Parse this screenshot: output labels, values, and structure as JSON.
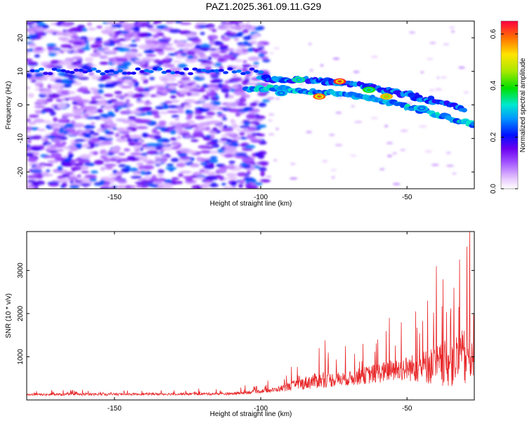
{
  "title": "PAZ1.2025.361.09.11.G29",
  "colors": {
    "snr_line": "#e8282a"
  },
  "chart_data": [
    {
      "type": "heatmap",
      "name": "spectrogram",
      "xlabel": "Height of straight line (km)",
      "ylabel": "Frequency (Hz)",
      "xlim": [
        -180,
        -27
      ],
      "ylim": [
        -25,
        25
      ],
      "xticks": [
        -150,
        -100,
        -50
      ],
      "yticks": [
        -20,
        -10,
        0,
        10,
        20
      ],
      "colorbar": {
        "label": "Normalized spectral amplitude",
        "range": [
          0,
          0.65
        ],
        "ticks": [
          0.0,
          0.2,
          0.4,
          0.6
        ]
      },
      "main_tone": [
        {
          "x": -105,
          "f": 4.5
        },
        {
          "x": -95,
          "f": 5.0
        },
        {
          "x": -85,
          "f": 4.0
        },
        {
          "x": -75,
          "f": 3.5
        },
        {
          "x": -65,
          "f": 2.5
        },
        {
          "x": -55,
          "f": 0.5
        },
        {
          "x": -45,
          "f": -1.5
        },
        {
          "x": -35,
          "f": -4.0
        },
        {
          "x": -27,
          "f": -6.0
        }
      ],
      "secondary_tone": [
        {
          "x": -100,
          "f": 8.0
        },
        {
          "x": -85,
          "f": 7.5
        },
        {
          "x": -70,
          "f": 6.5
        },
        {
          "x": -60,
          "f": 5.0
        },
        {
          "x": -50,
          "f": 3.0
        },
        {
          "x": -40,
          "f": 1.0
        },
        {
          "x": -30,
          "f": -1.5
        }
      ],
      "peaks": [
        {
          "x": -73,
          "f": 7,
          "amp": 0.63
        },
        {
          "x": -80,
          "f": 2.5,
          "amp": 0.6
        },
        {
          "x": -57,
          "f": 2.5,
          "amp": 0.55
        },
        {
          "x": -63,
          "f": 4.5,
          "amp": 0.4
        },
        {
          "x": -87,
          "f": 7.5,
          "amp": 0.35
        },
        {
          "x": -93,
          "f": 3.5,
          "amp": 0.3
        },
        {
          "x": -45,
          "f": -1,
          "amp": 0.3
        }
      ]
    },
    {
      "type": "line",
      "name": "snr",
      "xlabel": "Height of straight line (km)",
      "ylabel": "SNR (10 * v/v)",
      "xlim": [
        -180,
        -27
      ],
      "ylim": [
        0,
        3900
      ],
      "xticks": [
        -150,
        -100,
        -50
      ],
      "yticks": [
        1000,
        2000,
        3000
      ],
      "envelope": [
        {
          "x": -180,
          "mean": 120,
          "amp": 90
        },
        {
          "x": -110,
          "mean": 140,
          "amp": 110
        },
        {
          "x": -95,
          "mean": 230,
          "amp": 200
        },
        {
          "x": -82,
          "mean": 420,
          "amp": 650
        },
        {
          "x": -70,
          "mean": 480,
          "amp": 600
        },
        {
          "x": -60,
          "mean": 600,
          "amp": 850
        },
        {
          "x": -50,
          "mean": 700,
          "amp": 1050
        },
        {
          "x": -40,
          "mean": 750,
          "amp": 1700
        },
        {
          "x": -30,
          "mean": 900,
          "amp": 2500
        },
        {
          "x": -27,
          "mean": 1200,
          "amp": 2800
        }
      ],
      "spikes": [
        {
          "x": -28.5,
          "y": 3900
        },
        {
          "x": -29.5,
          "y": 3550
        },
        {
          "x": -32,
          "y": 3250
        },
        {
          "x": -34,
          "y": 2600
        },
        {
          "x": -40,
          "y": 3100
        },
        {
          "x": -43,
          "y": 2300
        },
        {
          "x": -47,
          "y": 2050
        },
        {
          "x": -52,
          "y": 1800
        },
        {
          "x": -56,
          "y": 1900
        },
        {
          "x": -60,
          "y": 1400
        },
        {
          "x": -65,
          "y": 1300
        },
        {
          "x": -71,
          "y": 1250
        },
        {
          "x": -78,
          "y": 1380
        },
        {
          "x": -80,
          "y": 1200
        }
      ]
    }
  ]
}
